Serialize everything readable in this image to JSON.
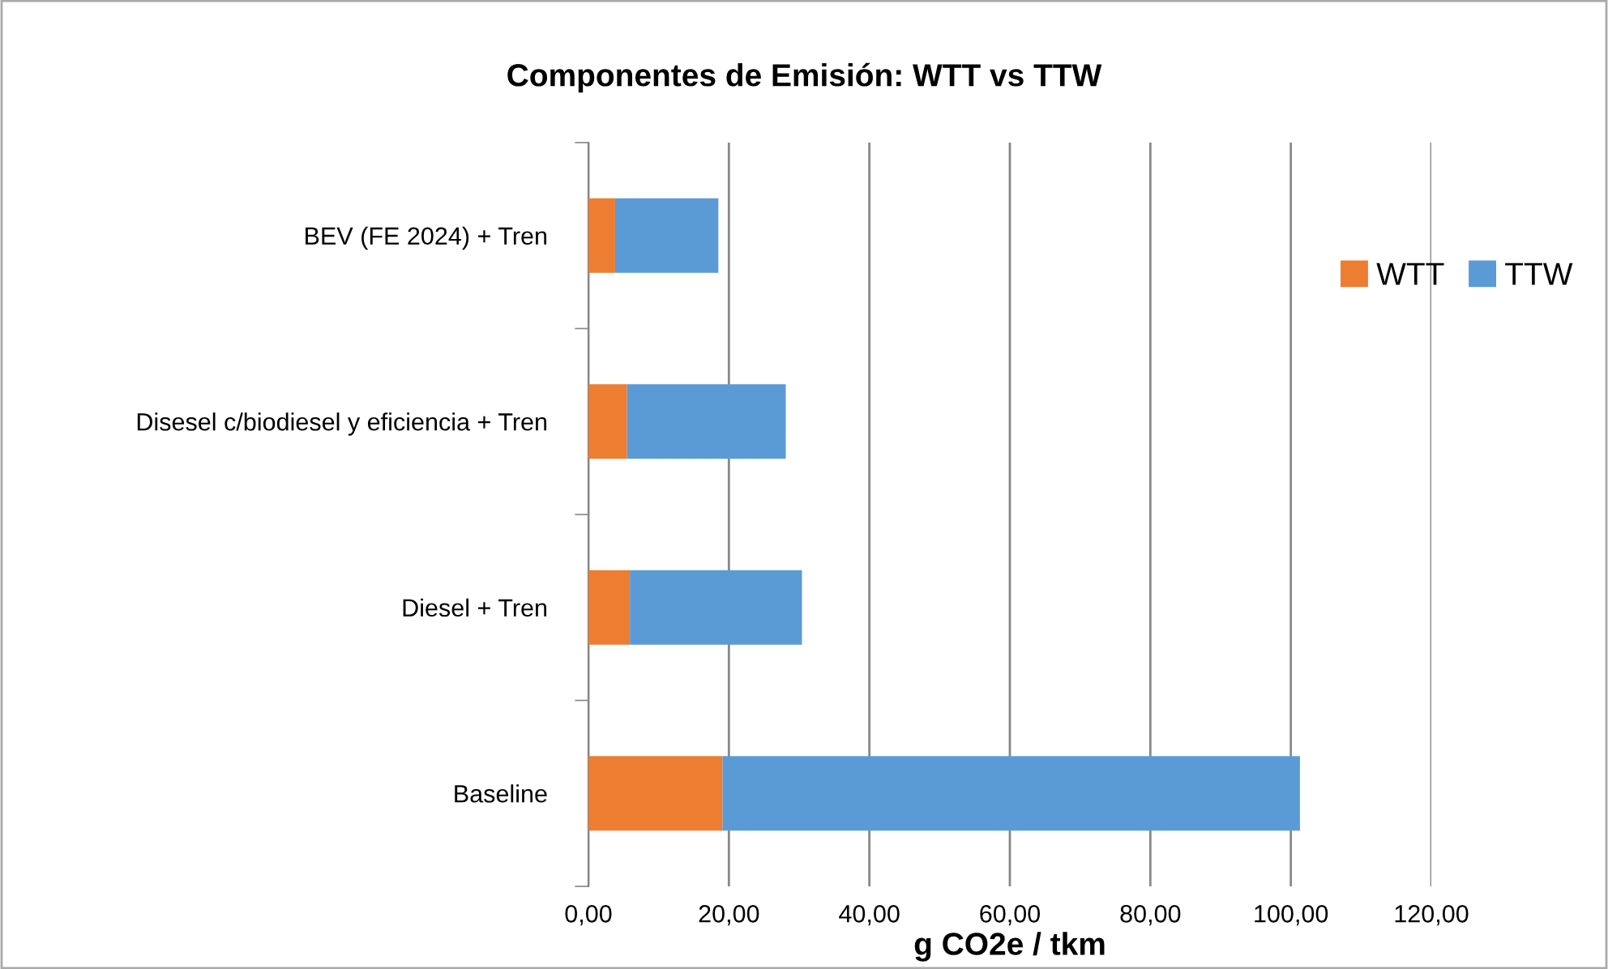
{
  "chart_data": {
    "type": "bar",
    "orientation": "horizontal",
    "stacked": true,
    "title": "Componentes de Emisión: WTT vs TTW",
    "xlabel": "g CO2e / tkm",
    "categories": [
      "BEV (FE 2024) + Tren",
      "Disesel c/biodiesel y eficiencia + Tren",
      "Diesel + Tren",
      "Baseline"
    ],
    "series": [
      {
        "name": "WTT",
        "color": "#ed7d31",
        "values": [
          3.8,
          5.5,
          5.9,
          19.1
        ]
      },
      {
        "name": "TTW",
        "color": "#5b9bd5",
        "values": [
          14.7,
          22.6,
          24.5,
          82.2
        ]
      }
    ],
    "xlim": [
      0,
      120
    ],
    "xticks": [
      {
        "value": 0,
        "label": "0,00"
      },
      {
        "value": 20,
        "label": "20,00"
      },
      {
        "value": 40,
        "label": "40,00"
      },
      {
        "value": 60,
        "label": "60,00"
      },
      {
        "value": 80,
        "label": "80,00"
      },
      {
        "value": 100,
        "label": "100,00"
      },
      {
        "value": 120,
        "label": "120,00"
      }
    ],
    "grid": "x",
    "legend": "right"
  }
}
